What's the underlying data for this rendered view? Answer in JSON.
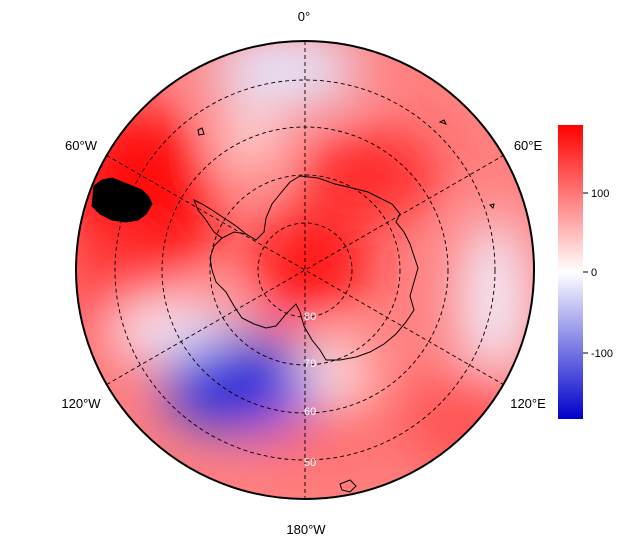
{
  "map": {
    "projection": "south-polar-stereographic",
    "longitude_labels": [
      {
        "id": "lon-0",
        "text": "0°"
      },
      {
        "id": "lon-60e",
        "text": "60°E"
      },
      {
        "id": "lon-120e",
        "text": "120°E"
      },
      {
        "id": "lon-180w",
        "text": "180°W"
      },
      {
        "id": "lon-120w",
        "text": "120°W"
      },
      {
        "id": "lon-60w",
        "text": "60°W"
      }
    ],
    "latitude_labels": [
      {
        "id": "lat-80",
        "text": "80"
      },
      {
        "id": "lat-70",
        "text": "70"
      },
      {
        "id": "lat-60",
        "text": "60"
      },
      {
        "id": "lat-50",
        "text": "50"
      }
    ],
    "field_colors": {
      "positive": "#ff0000",
      "neutral": "#ffffff",
      "negative": "#0000d0"
    }
  },
  "colorbar": {
    "range": [
      -180,
      180
    ],
    "ticks": [
      "100",
      "0",
      "-100"
    ],
    "colors": {
      "top": "#ff0000",
      "middle": "#ffffff",
      "bottom": "#0000cc"
    }
  }
}
